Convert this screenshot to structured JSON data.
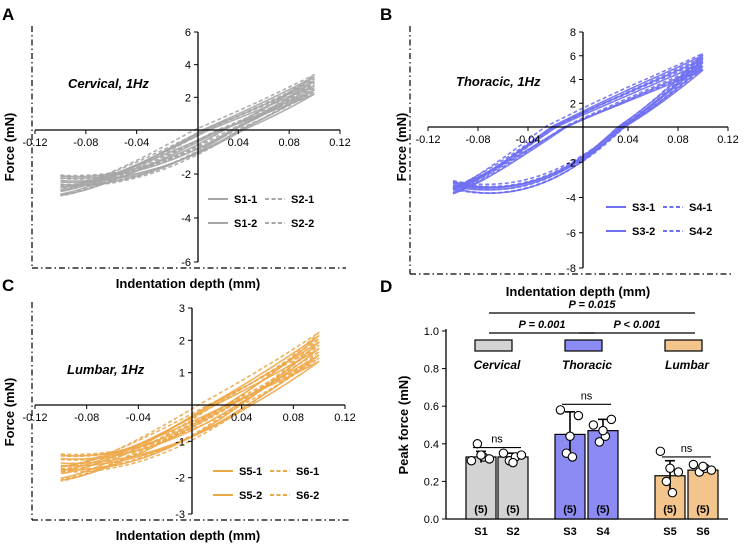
{
  "panels": [
    {
      "letter": "A",
      "title": "Cervical, 1Hz",
      "color": "#a6a6a6",
      "xlabel": "Indentation depth (mm)",
      "ylabel": "Force (mN)",
      "xlim": [
        -0.12,
        0.12
      ],
      "ylim": [
        -6,
        6
      ],
      "xticks": [
        "-0.12",
        "-0.08",
        "-0.04",
        "0.04",
        "0.08",
        "0.12"
      ],
      "yticks": [
        "-6",
        "-4",
        "-2",
        "2",
        "4",
        "6"
      ],
      "legend": [
        "S1-1",
        "S2-1",
        "S1-2",
        "S2-2"
      ],
      "curve": {
        "x0": -0.1,
        "x1": 0.1,
        "load_start": -2.3,
        "load_end": 2.8,
        "unload_start": -2.8,
        "peak_spread": 1.2,
        "hyst": 0.6
      }
    },
    {
      "letter": "B",
      "title": "Thoracic, 1Hz",
      "color": "#6f6ff2",
      "xlabel": "Indentation depth (mm)",
      "ylabel": "Force (mN)",
      "xlim": [
        -0.12,
        0.12
      ],
      "ylim": [
        -8,
        8
      ],
      "xticks": [
        "-0.12",
        "-0.08",
        "-0.04",
        "0.04",
        "0.08",
        "0.12"
      ],
      "yticks": [
        "-8",
        "-6",
        "-4",
        "-2",
        "2",
        "4",
        "6",
        "8"
      ],
      "legend": [
        "S3-1",
        "S4-1",
        "S3-2",
        "S4-2"
      ],
      "curve": {
        "x0": -0.1,
        "x1": 0.1,
        "load_start": -3.3,
        "load_end": 5.5,
        "unload_start": -3.6,
        "peak_spread": 1.4,
        "hyst": 2.4
      }
    },
    {
      "letter": "C",
      "title": "Lumbar, 1Hz",
      "color": "#eda84a",
      "xlabel": "Indentation depth (mm)",
      "ylabel": "Force (mN)",
      "xlim": [
        -0.12,
        0.12
      ],
      "ylim": [
        -3,
        3
      ],
      "xticks": [
        "-0.12",
        "-0.08",
        "-0.04",
        "0.04",
        "0.08",
        "0.12"
      ],
      "yticks": [
        "-3",
        "-2",
        "-1",
        "1",
        "2",
        "3"
      ],
      "legend": [
        "S5-1",
        "S6-1",
        "S5-2",
        "S6-2"
      ],
      "curve": {
        "x0": -0.1,
        "x1": 0.1,
        "load_start": -1.6,
        "load_end": 1.8,
        "unload_start": -1.9,
        "peak_spread": 0.9,
        "hyst": 0.35
      }
    }
  ],
  "panel_d": {
    "letter": "D",
    "ylabel": "Peak force (mN)",
    "ylim": [
      0.0,
      1.0
    ],
    "yticks": [
      "0.0",
      "0.2",
      "0.4",
      "0.6",
      "0.8",
      "1.0"
    ],
    "groups": [
      {
        "name": "Cervical",
        "color": "#d3d3d3"
      },
      {
        "name": "Thoracic",
        "color": "#8b8bf3"
      },
      {
        "name": "Lumbar",
        "color": "#f3c48c"
      }
    ],
    "bars": [
      {
        "label": "S1",
        "value": 0.33,
        "err": 0.03,
        "n": "(5)",
        "group": 0,
        "points": [
          0.31,
          0.4,
          0.33,
          0.32,
          0.34
        ]
      },
      {
        "label": "S2",
        "value": 0.33,
        "err": 0.02,
        "n": "(5)",
        "group": 0,
        "points": [
          0.35,
          0.31,
          0.33,
          0.34,
          0.3
        ]
      },
      {
        "label": "S3",
        "value": 0.45,
        "err": 0.12,
        "n": "(5)",
        "group": 1,
        "points": [
          0.58,
          0.35,
          0.33,
          0.55,
          0.44
        ]
      },
      {
        "label": "S4",
        "value": 0.47,
        "err": 0.06,
        "n": "(5)",
        "group": 1,
        "points": [
          0.5,
          0.41,
          0.44,
          0.53,
          0.47
        ]
      },
      {
        "label": "S5",
        "value": 0.23,
        "err": 0.08,
        "n": "(5)",
        "group": 2,
        "points": [
          0.36,
          0.2,
          0.14,
          0.25,
          0.27
        ]
      },
      {
        "label": "S6",
        "value": 0.26,
        "err": 0.02,
        "n": "(5)",
        "group": 2,
        "points": [
          0.29,
          0.25,
          0.27,
          0.26,
          0.28
        ]
      }
    ],
    "ns_label": "ns",
    "comparisons": [
      {
        "text": "P = 0.015",
        "from": 0,
        "to": 2
      },
      {
        "text": "P = 0.001",
        "from": 0,
        "to": 1
      },
      {
        "text": "P < 0.001",
        "from": 1,
        "to": 2
      }
    ]
  }
}
